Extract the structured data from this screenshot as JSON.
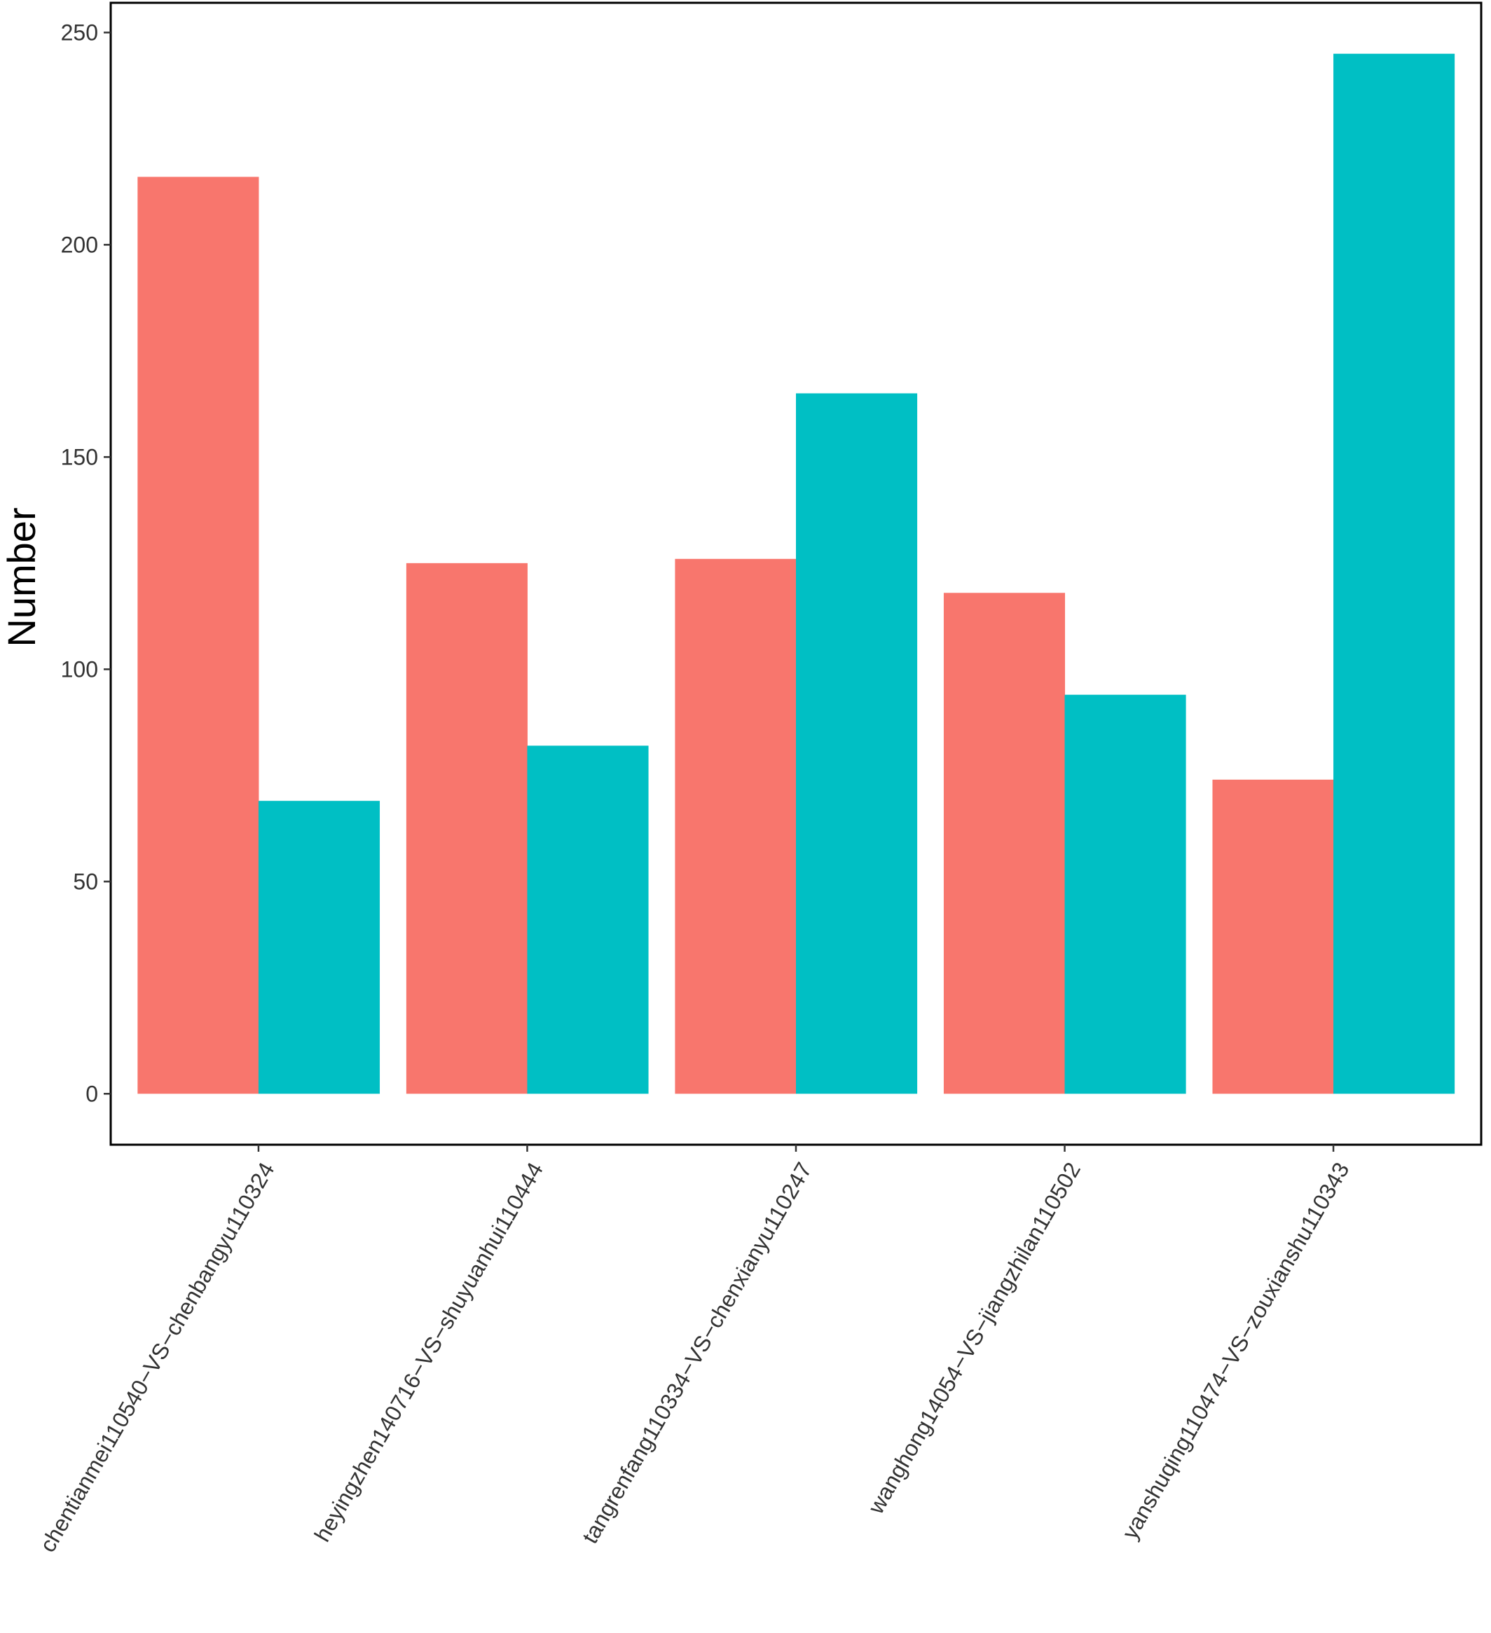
{
  "chart_data": {
    "type": "bar",
    "title": "",
    "xlabel": "",
    "ylabel": "Number",
    "ylim": [
      -12,
      257
    ],
    "yticks": [
      0,
      50,
      100,
      150,
      200,
      250
    ],
    "grid": false,
    "legend": "none",
    "categories": [
      "chentianmei110540−VS−chenbangyu110324",
      "heyingzhen140716−VS−shuyuanhui110444",
      "tangrenfang110334−VS−chenxianyu110247",
      "wanghong14054−VS−jiangzhilan110502",
      "yanshuqing110474−VS−zouxianshu110343"
    ],
    "series": [
      {
        "color": "#F8766D",
        "values": [
          216,
          125,
          126,
          118,
          74
        ]
      },
      {
        "color": "#00BFC4",
        "values": [
          69,
          82,
          165,
          94,
          245
        ]
      }
    ]
  }
}
